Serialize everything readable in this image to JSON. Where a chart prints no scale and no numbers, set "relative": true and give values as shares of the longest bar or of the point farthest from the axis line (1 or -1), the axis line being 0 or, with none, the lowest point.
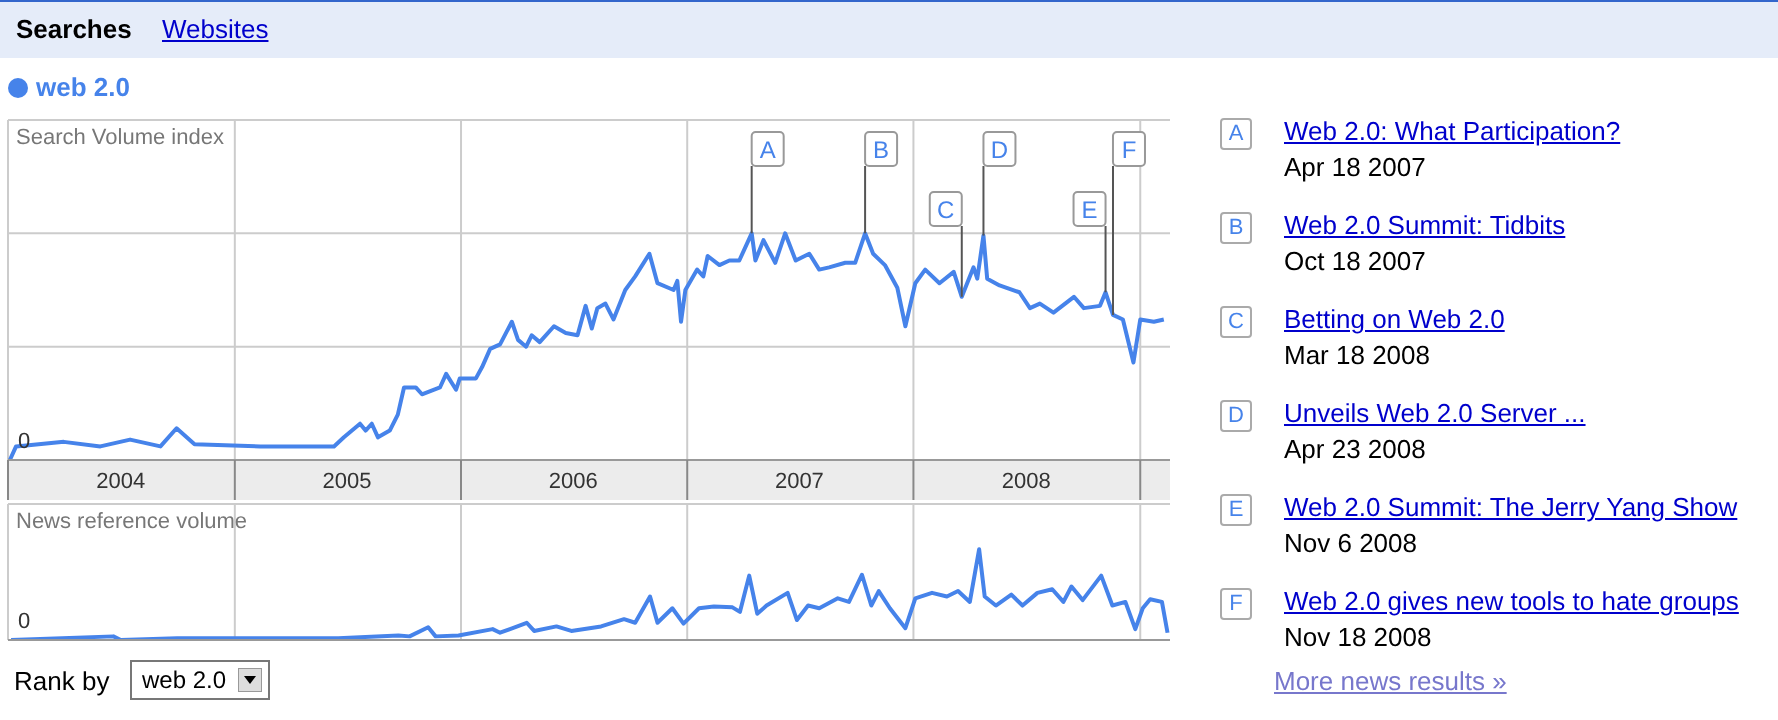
{
  "chart_data": [
    {
      "type": "line",
      "ylabel": "Search Volume index",
      "relative": true,
      "grid": true,
      "legend": "top left",
      "tick_labels": "x",
      "xlim": [
        "2004-01-01",
        "2009-02-18"
      ],
      "xticks": [
        {
          "value": "2004-01-01",
          "label": null
        },
        {
          "value": "2004-07-01",
          "label": "2004"
        },
        {
          "value": "2005-01-01",
          "label": null
        },
        {
          "value": "2005-07-01",
          "label": "2005"
        },
        {
          "value": "2006-01-01",
          "label": null
        },
        {
          "value": "2006-07-01",
          "label": "2006"
        },
        {
          "value": "2007-01-01",
          "label": null
        },
        {
          "value": "2007-07-01",
          "label": "2007"
        },
        {
          "value": "2008-01-01",
          "label": null
        },
        {
          "value": "2008-07-01",
          "label": "2008"
        },
        {
          "value": "2009-01-01",
          "label": null
        }
      ],
      "series": [
        {
          "name": "web 2.0",
          "color": "#4683ea",
          "x": [
            "2004-01-04",
            "2004-01-14",
            "2004-03-31",
            "2004-05-29",
            "2004-07-16",
            "2004-09-03",
            "2004-09-29",
            "2004-10-28",
            "2005-02-11",
            "2005-06-10",
            "2005-06-26",
            "2005-07-22",
            "2005-07-31",
            "2005-08-10",
            "2005-08-20",
            "2005-09-08",
            "2005-09-21",
            "2005-10-01",
            "2005-10-20",
            "2005-10-30",
            "2005-11-28",
            "2005-12-08",
            "2005-12-24",
            "2005-12-30",
            "2006-01-25",
            "2006-02-04",
            "2006-02-17",
            "2006-03-05",
            "2006-03-24",
            "2006-04-03",
            "2006-04-16",
            "2006-04-25",
            "2006-05-08",
            "2006-05-31",
            "2006-06-19",
            "2006-07-08",
            "2006-07-21",
            "2006-07-31",
            "2006-08-09",
            "2006-08-22",
            "2006-09-04",
            "2006-09-23",
            "2006-10-09",
            "2006-11-01",
            "2006-11-14",
            "2006-12-10",
            "2006-12-16",
            "2006-12-22",
            "2006-12-29",
            "2007-01-17",
            "2007-01-27",
            "2007-02-03",
            "2007-02-22",
            "2007-03-10",
            "2007-03-26",
            "2007-04-15",
            "2007-04-21",
            "2007-05-04",
            "2007-05-23",
            "2007-06-08",
            "2007-06-25",
            "2007-07-17",
            "2007-08-02",
            "2007-08-18",
            "2007-09-13",
            "2007-09-29",
            "2007-10-15",
            "2007-10-28",
            "2007-11-16",
            "2007-12-06",
            "2007-12-19",
            "2008-01-04",
            "2008-01-20",
            "2008-02-12",
            "2008-03-06",
            "2008-03-19",
            "2008-04-07",
            "2008-04-13",
            "2008-04-23",
            "2008-04-29",
            "2008-05-19",
            "2008-06-20",
            "2008-07-07",
            "2008-07-23",
            "2008-08-14",
            "2008-09-16",
            "2008-10-02",
            "2008-10-28",
            "2008-11-06",
            "2008-11-18",
            "2008-12-04",
            "2008-12-21",
            "2009-01-01",
            "2009-01-23",
            "2009-02-08"
          ],
          "values": [
            0,
            0.06,
            0.08,
            0.06,
            0.09,
            0.06,
            0.14,
            0.07,
            0.06,
            0.06,
            0.1,
            0.16,
            0.13,
            0.16,
            0.1,
            0.13,
            0.2,
            0.32,
            0.32,
            0.29,
            0.32,
            0.38,
            0.31,
            0.36,
            0.36,
            0.41,
            0.49,
            0.51,
            0.61,
            0.53,
            0.5,
            0.55,
            0.52,
            0.59,
            0.56,
            0.55,
            0.68,
            0.58,
            0.67,
            0.69,
            0.62,
            0.75,
            0.81,
            0.91,
            0.78,
            0.75,
            0.79,
            0.61,
            0.75,
            0.84,
            0.81,
            0.9,
            0.86,
            0.88,
            0.88,
            1.0,
            0.88,
            0.97,
            0.87,
            1.0,
            0.88,
            0.91,
            0.84,
            0.85,
            0.87,
            0.87,
            1.0,
            0.91,
            0.86,
            0.76,
            0.59,
            0.78,
            0.84,
            0.78,
            0.83,
            0.72,
            0.85,
            0.8,
            0.99,
            0.8,
            0.77,
            0.74,
            0.67,
            0.69,
            0.65,
            0.72,
            0.67,
            0.68,
            0.74,
            0.64,
            0.62,
            0.43,
            0.62,
            0.61,
            0.62
          ]
        }
      ],
      "annotations": [
        {
          "text": "A",
          "x": "2007-04-15",
          "y": 1.0
        },
        {
          "text": "B",
          "x": "2007-10-15",
          "y": 1.0
        },
        {
          "text": "C",
          "x": "2008-03-19",
          "y": 0.72
        },
        {
          "text": "D",
          "x": "2008-04-23",
          "y": 0.99
        },
        {
          "text": "E",
          "x": "2008-11-06",
          "y": 0.74
        },
        {
          "text": "F",
          "x": "2008-11-18",
          "y": 0.64
        },
        "0"
      ]
    },
    {
      "type": "line",
      "ylabel": "News reference volume",
      "relative": true,
      "grid": true,
      "tick_labels": false,
      "xlim": [
        "2004-01-01",
        "2009-02-18"
      ],
      "xticks": [
        {
          "value": "2004-01-01",
          "label": null
        },
        {
          "value": "2005-01-01",
          "label": null
        },
        {
          "value": "2006-01-01",
          "label": null
        },
        {
          "value": "2007-01-01",
          "label": null
        },
        {
          "value": "2008-01-01",
          "label": null
        },
        {
          "value": "2009-01-01",
          "label": null
        }
      ],
      "series": [
        {
          "color": "#4683ea",
          "x": [
            "2004-01-06",
            "2004-06-19",
            "2004-07-01",
            "2004-09-30",
            "2005-06-17",
            "2005-09-22",
            "2005-10-10",
            "2005-11-09",
            "2005-11-21",
            "2005-12-28",
            "2006-02-21",
            "2006-03-05",
            "2006-04-17",
            "2006-04-29",
            "2006-06-04",
            "2006-06-28",
            "2006-08-15",
            "2006-09-21",
            "2006-10-09",
            "2006-11-02",
            "2006-11-14",
            "2006-12-08",
            "2006-12-26",
            "2007-01-20",
            "2007-02-13",
            "2007-03-15",
            "2007-03-27",
            "2007-04-11",
            "2007-04-24",
            "2007-05-09",
            "2007-06-12",
            "2007-06-27",
            "2007-07-15",
            "2007-08-02",
            "2007-09-01",
            "2007-09-19",
            "2007-10-10",
            "2007-10-25",
            "2007-11-06",
            "2007-11-24",
            "2007-12-19",
            "2008-01-04",
            "2008-01-31",
            "2008-02-24",
            "2008-03-13",
            "2008-04-01",
            "2008-04-16",
            "2008-04-25",
            "2008-05-13",
            "2008-06-07",
            "2008-06-25",
            "2008-07-19",
            "2008-08-12",
            "2008-08-30",
            "2008-09-12",
            "2008-09-30",
            "2008-10-30",
            "2008-11-17",
            "2008-12-08",
            "2008-12-24",
            "2009-01-05",
            "2009-01-17",
            "2009-02-05",
            "2009-02-14"
          ],
          "values": [
            0,
            0.04,
            0,
            0.02,
            0.02,
            0.05,
            0.04,
            0.14,
            0.04,
            0.05,
            0.12,
            0.08,
            0.19,
            0.1,
            0.15,
            0.1,
            0.15,
            0.23,
            0.19,
            0.48,
            0.19,
            0.35,
            0.18,
            0.35,
            0.37,
            0.36,
            0.31,
            0.71,
            0.29,
            0.38,
            0.52,
            0.22,
            0.38,
            0.35,
            0.46,
            0.42,
            0.72,
            0.38,
            0.54,
            0.35,
            0.13,
            0.46,
            0.52,
            0.48,
            0.54,
            0.42,
            1.0,
            0.48,
            0.38,
            0.5,
            0.38,
            0.52,
            0.56,
            0.42,
            0.59,
            0.44,
            0.71,
            0.38,
            0.42,
            0.12,
            0.35,
            0.45,
            0.42,
            0.08
          ]
        }
      ],
      "annotations": [
        "0"
      ]
    },
    {
      "type": "other",
      "annotations": [
        "Searches",
        "Websites",
        "A",
        "Web 2.0: What Participation?",
        "Apr 18 2007",
        "B",
        "Web 2.0 Summit: Tidbits",
        "Oct 18 2007",
        "C",
        "Betting on Web 2.0",
        "Mar 18 2008",
        "D",
        "Unveils Web 2.0 Server ...",
        "Apr 23 2008",
        "E",
        "Web 2.0 Summit: The Jerry Yang Show",
        "Nov 6 2008",
        "F",
        "Web 2.0 gives new tools to hate groups",
        "Nov 18 2008",
        "More news results »",
        "Rank by",
        "web 2.0"
      ]
    }
  ]
}
